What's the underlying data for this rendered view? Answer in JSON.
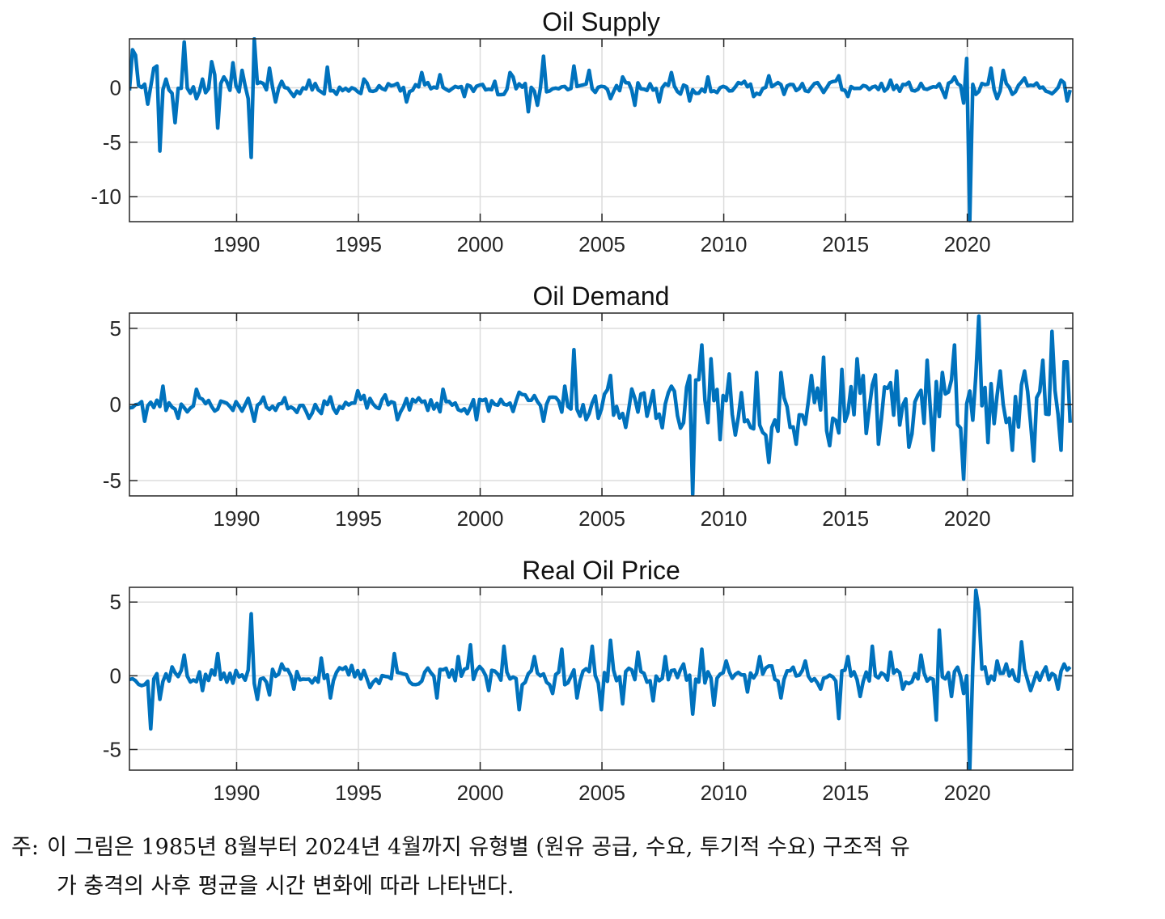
{
  "page": {
    "note_label": "주:",
    "note_line1": "이 그림은 1985년 8월부터 2024년 4월까지 유형별 (원유 공급, 수요, 투기적 수요) 구조적 유",
    "note_line2": "가 충격의 사후 평균을 시간 변화에 따라 나타낸다."
  },
  "colors": {
    "series": "#0072BD",
    "grid": "#dcdcdc",
    "axis": "#262626"
  },
  "chart_data": [
    {
      "type": "line",
      "title": "Oil Supply",
      "xlim": [
        1985.6,
        2024.33
      ],
      "ylim": [
        -12.3,
        4.5
      ],
      "xticks": [
        1990,
        1995,
        2000,
        2005,
        2010,
        2015,
        2020
      ],
      "xtick_labels": [
        "1990",
        "1995",
        "2000",
        "2005",
        "2010",
        "2015",
        "2020"
      ],
      "yticks": [
        -10,
        -5,
        0
      ],
      "ytick_labels": [
        "-10",
        "-5",
        "0"
      ],
      "grid": true,
      "x_step": 0.125,
      "baseline_amplitude": 0.55,
      "spikes": [
        [
          1985.7,
          3.5
        ],
        [
          1985.85,
          3.0
        ],
        [
          1986.0,
          0.2
        ],
        [
          1986.3,
          -1.5
        ],
        [
          1986.55,
          1.8
        ],
        [
          1986.75,
          2.0
        ],
        [
          1986.9,
          -5.8
        ],
        [
          1987.1,
          0.8
        ],
        [
          1987.35,
          -0.5
        ],
        [
          1987.5,
          -3.2
        ],
        [
          1987.8,
          4.2
        ],
        [
          1988.05,
          -0.5
        ],
        [
          1988.3,
          -1.0
        ],
        [
          1988.6,
          0.8
        ],
        [
          1988.95,
          2.4
        ],
        [
          1989.1,
          1.2
        ],
        [
          1989.2,
          -3.7
        ],
        [
          1989.5,
          1.0
        ],
        [
          1989.8,
          2.3
        ],
        [
          1990.2,
          1.6
        ],
        [
          1990.5,
          -1.0
        ],
        [
          1990.6,
          -6.4
        ],
        [
          1990.72,
          4.5
        ],
        [
          1990.9,
          0.4
        ],
        [
          1991.3,
          1.8
        ],
        [
          1991.6,
          -1.3
        ],
        [
          1991.9,
          0.6
        ],
        [
          1992.3,
          -0.8
        ],
        [
          1993.0,
          0.7
        ],
        [
          1993.7,
          1.9
        ],
        [
          1994.1,
          -0.6
        ],
        [
          1995.2,
          0.8
        ],
        [
          1997.0,
          -1.3
        ],
        [
          1997.6,
          1.4
        ],
        [
          1998.3,
          1.2
        ],
        [
          1999.4,
          -0.8
        ],
        [
          2000.6,
          0.6
        ],
        [
          2001.2,
          1.4
        ],
        [
          2001.4,
          1.0
        ],
        [
          2002.0,
          -2.2
        ],
        [
          2002.3,
          -1.6
        ],
        [
          2002.6,
          2.9
        ],
        [
          2003.8,
          2.0
        ],
        [
          2004.5,
          1.6
        ],
        [
          2005.4,
          -1.0
        ],
        [
          2005.8,
          1.0
        ],
        [
          2006.4,
          -1.6
        ],
        [
          2007.4,
          -1.3
        ],
        [
          2007.9,
          1.4
        ],
        [
          2008.6,
          -1.2
        ],
        [
          2009.3,
          1.0
        ],
        [
          2010.8,
          0.6
        ],
        [
          2011.2,
          -0.8
        ],
        [
          2011.9,
          1.1
        ],
        [
          2012.5,
          -0.6
        ],
        [
          2014.7,
          1.1
        ],
        [
          2015.1,
          -0.8
        ],
        [
          2016.8,
          0.7
        ],
        [
          2019.1,
          -0.9
        ],
        [
          2019.5,
          1.0
        ],
        [
          2019.8,
          -1.4
        ],
        [
          2020.0,
          2.7
        ],
        [
          2020.15,
          -12.2
        ],
        [
          2020.35,
          -0.6
        ],
        [
          2020.6,
          0.4
        ],
        [
          2021.0,
          1.8
        ],
        [
          2021.2,
          -1.0
        ],
        [
          2021.5,
          1.6
        ],
        [
          2021.8,
          -0.6
        ],
        [
          2022.3,
          0.9
        ],
        [
          2023.3,
          -0.4
        ],
        [
          2023.9,
          0.7
        ],
        [
          2024.1,
          -1.2
        ],
        [
          2024.3,
          -0.2
        ]
      ],
      "seed": 11
    },
    {
      "type": "line",
      "title": "Oil Demand",
      "xlim": [
        1985.6,
        2024.33
      ],
      "ylim": [
        -6.0,
        6.0
      ],
      "xticks": [
        1990,
        1995,
        2000,
        2005,
        2010,
        2015,
        2020
      ],
      "xtick_labels": [
        "1990",
        "1995",
        "2000",
        "2005",
        "2010",
        "2015",
        "2020"
      ],
      "yticks": [
        -5,
        0,
        5
      ],
      "ytick_labels": [
        "-5",
        "0",
        "5"
      ],
      "grid": true,
      "x_step": 0.125,
      "baseline_amplitude": 0.5,
      "amplitude_growth": [
        [
          1985.6,
          0.5
        ],
        [
          2003.0,
          0.7
        ],
        [
          2008.5,
          1.8
        ],
        [
          2024.33,
          2.2
        ]
      ],
      "spikes": [
        [
          1986.2,
          -1.1
        ],
        [
          1987.0,
          1.2
        ],
        [
          1987.6,
          -0.9
        ],
        [
          1988.4,
          1.0
        ],
        [
          1990.7,
          -1.1
        ],
        [
          1993.0,
          -0.9
        ],
        [
          1995.0,
          0.9
        ],
        [
          1996.6,
          -1.0
        ],
        [
          1998.5,
          1.0
        ],
        [
          1999.8,
          -1.0
        ],
        [
          2001.6,
          0.8
        ],
        [
          2002.6,
          -1.1
        ],
        [
          2003.5,
          1.2
        ],
        [
          2003.8,
          3.6
        ],
        [
          2004.3,
          -1.0
        ],
        [
          2004.8,
          -0.9
        ],
        [
          2005.3,
          1.9
        ],
        [
          2005.5,
          -0.7
        ],
        [
          2006.0,
          -1.5
        ],
        [
          2006.3,
          0.4
        ],
        [
          2007.2,
          -0.9
        ],
        [
          2007.8,
          1.2
        ],
        [
          2008.3,
          -1.2
        ],
        [
          2008.7,
          -5.9
        ],
        [
          2009.1,
          3.9
        ],
        [
          2009.5,
          3.0
        ],
        [
          2009.8,
          -2.3
        ],
        [
          2010.2,
          2.0
        ],
        [
          2010.5,
          -2.0
        ],
        [
          2011.4,
          2.1
        ],
        [
          2011.9,
          -3.8
        ],
        [
          2012.4,
          2.1
        ],
        [
          2013.0,
          -2.6
        ],
        [
          2013.6,
          1.9
        ],
        [
          2014.1,
          3.1
        ],
        [
          2014.4,
          -2.7
        ],
        [
          2014.9,
          2.3
        ],
        [
          2015.5,
          3.0
        ],
        [
          2015.8,
          -1.9
        ],
        [
          2016.4,
          -2.6
        ],
        [
          2017.1,
          2.2
        ],
        [
          2017.6,
          -2.8
        ],
        [
          2018.3,
          2.9
        ],
        [
          2018.6,
          -3.0
        ],
        [
          2019.0,
          2.1
        ],
        [
          2019.5,
          3.9
        ],
        [
          2019.9,
          -4.9
        ],
        [
          2020.3,
          1.9
        ],
        [
          2020.5,
          5.8
        ],
        [
          2020.8,
          -2.5
        ],
        [
          2021.3,
          2.2
        ],
        [
          2021.8,
          -3.0
        ],
        [
          2022.3,
          2.2
        ],
        [
          2022.7,
          -3.7
        ],
        [
          2023.1,
          2.9
        ],
        [
          2023.5,
          4.8
        ],
        [
          2023.8,
          -3.0
        ],
        [
          2024.0,
          2.8
        ],
        [
          2024.15,
          2.8
        ],
        [
          2024.33,
          -1.2
        ]
      ],
      "seed": 23
    },
    {
      "type": "line",
      "title": "Real Oil Price",
      "xlim": [
        1985.6,
        2024.33
      ],
      "ylim": [
        -6.4,
        6.0
      ],
      "xticks": [
        1990,
        1995,
        2000,
        2005,
        2010,
        2015,
        2020
      ],
      "xtick_labels": [
        "1990",
        "1995",
        "2000",
        "2005",
        "2010",
        "2015",
        "2020"
      ],
      "yticks": [
        -5,
        0,
        5
      ],
      "ytick_labels": [
        "-5",
        "0",
        "5"
      ],
      "grid": true,
      "x_step": 0.125,
      "baseline_amplitude": 0.6,
      "spikes": [
        [
          1985.7,
          -0.2
        ],
        [
          1986.2,
          -0.6
        ],
        [
          1986.5,
          -3.6
        ],
        [
          1986.8,
          -1.6
        ],
        [
          1987.3,
          0.6
        ],
        [
          1987.8,
          1.4
        ],
        [
          1988.6,
          -1.0
        ],
        [
          1989.2,
          1.5
        ],
        [
          1989.9,
          -0.5
        ],
        [
          1990.4,
          -0.3
        ],
        [
          1990.6,
          4.2
        ],
        [
          1990.9,
          -1.6
        ],
        [
          1991.3,
          -1.3
        ],
        [
          1991.8,
          0.8
        ],
        [
          1992.4,
          -0.9
        ],
        [
          1993.5,
          1.2
        ],
        [
          1993.9,
          -1.5
        ],
        [
          1994.7,
          0.7
        ],
        [
          1995.5,
          -0.8
        ],
        [
          1996.5,
          1.5
        ],
        [
          1997.3,
          -0.6
        ],
        [
          1998.2,
          -1.5
        ],
        [
          1999.1,
          1.3
        ],
        [
          1999.6,
          2.1
        ],
        [
          2000.3,
          -1.0
        ],
        [
          2001.0,
          2.0
        ],
        [
          2001.6,
          -2.3
        ],
        [
          2002.2,
          1.3
        ],
        [
          2003.0,
          -1.2
        ],
        [
          2003.4,
          1.8
        ],
        [
          2004.0,
          -1.5
        ],
        [
          2004.6,
          2.0
        ],
        [
          2005.0,
          -2.3
        ],
        [
          2005.4,
          2.4
        ],
        [
          2005.9,
          -1.9
        ],
        [
          2006.5,
          1.6
        ],
        [
          2007.1,
          -1.7
        ],
        [
          2007.6,
          1.3
        ],
        [
          2008.3,
          0.8
        ],
        [
          2008.7,
          -2.6
        ],
        [
          2009.1,
          1.8
        ],
        [
          2009.6,
          -2.0
        ],
        [
          2010.1,
          1.0
        ],
        [
          2011.0,
          -1.1
        ],
        [
          2011.5,
          1.3
        ],
        [
          2012.4,
          -1.5
        ],
        [
          2013.3,
          1.0
        ],
        [
          2014.0,
          -0.9
        ],
        [
          2014.7,
          -2.9
        ],
        [
          2015.1,
          1.3
        ],
        [
          2015.6,
          -1.4
        ],
        [
          2016.1,
          2.0
        ],
        [
          2016.8,
          1.6
        ],
        [
          2017.3,
          -0.9
        ],
        [
          2018.1,
          1.4
        ],
        [
          2018.7,
          -3.0
        ],
        [
          2018.9,
          3.1
        ],
        [
          2019.4,
          -1.4
        ],
        [
          2019.9,
          -1.2
        ],
        [
          2020.1,
          -6.3
        ],
        [
          2020.3,
          5.8
        ],
        [
          2020.5,
          4.5
        ],
        [
          2020.7,
          0.6
        ],
        [
          2021.2,
          1.0
        ],
        [
          2021.6,
          0.8
        ],
        [
          2022.2,
          2.3
        ],
        [
          2022.6,
          -1.0
        ],
        [
          2023.2,
          0.6
        ],
        [
          2023.7,
          -0.9
        ],
        [
          2024.0,
          0.8
        ],
        [
          2024.33,
          0.6
        ]
      ],
      "seed": 37
    }
  ]
}
